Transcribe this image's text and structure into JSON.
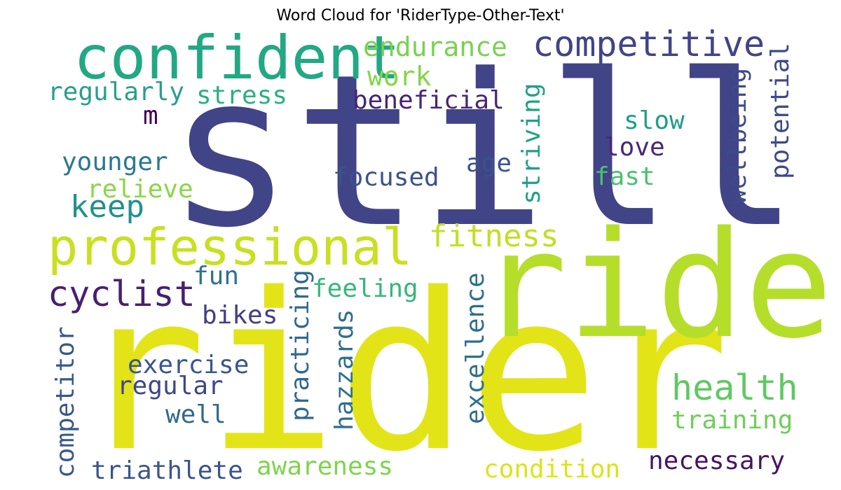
{
  "title": "Word Cloud for 'RiderType-Other-Text'",
  "words": [
    {
      "text": "still",
      "color": "#414487"
    },
    {
      "text": "rider",
      "color": "#e2e418"
    },
    {
      "text": "ride",
      "color": "#b5de2b"
    },
    {
      "text": "confident",
      "color": "#22a884"
    },
    {
      "text": "professional",
      "color": "#c8e020"
    },
    {
      "text": "competitive",
      "color": "#414487"
    },
    {
      "text": "endurance",
      "color": "#7ad151"
    },
    {
      "text": "work",
      "color": "#86d549"
    },
    {
      "text": "regularly",
      "color": "#2a9f8c"
    },
    {
      "text": "stress",
      "color": "#2ab07f"
    },
    {
      "text": "beneficial",
      "color": "#482576"
    },
    {
      "text": "m",
      "color": "#440154"
    },
    {
      "text": "younger",
      "color": "#2a788e"
    },
    {
      "text": "relieve",
      "color": "#8bd646"
    },
    {
      "text": "keep",
      "color": "#21918c"
    },
    {
      "text": "focused",
      "color": "#3b528b"
    },
    {
      "text": "age",
      "color": "#3b528b"
    },
    {
      "text": "striving",
      "color": "#1fa187"
    },
    {
      "text": "slow",
      "color": "#1f9e89"
    },
    {
      "text": "love",
      "color": "#482878"
    },
    {
      "text": "fast",
      "color": "#4ac16d"
    },
    {
      "text": "wellbeing",
      "color": "#3e4a89"
    },
    {
      "text": "potential",
      "color": "#3e4989"
    },
    {
      "text": "fitness",
      "color": "#c2df23"
    },
    {
      "text": "cyclist",
      "color": "#481f70"
    },
    {
      "text": "fun",
      "color": "#2c728e"
    },
    {
      "text": "feeling",
      "color": "#35b779"
    },
    {
      "text": "practicing",
      "color": "#31688e"
    },
    {
      "text": "bikes",
      "color": "#433e85"
    },
    {
      "text": "hazzards",
      "color": "#2d708e"
    },
    {
      "text": "excellence",
      "color": "#2e6e8e"
    },
    {
      "text": "exercise",
      "color": "#39568c"
    },
    {
      "text": "regular",
      "color": "#3f4788"
    },
    {
      "text": "well",
      "color": "#31688e"
    },
    {
      "text": "competitor",
      "color": "#38588c"
    },
    {
      "text": "health",
      "color": "#5ec962"
    },
    {
      "text": "training",
      "color": "#6ece58"
    },
    {
      "text": "triathlete",
      "color": "#3a548c"
    },
    {
      "text": "awareness",
      "color": "#7fd34e"
    },
    {
      "text": "condition",
      "color": "#dde318"
    },
    {
      "text": "necessary",
      "color": "#471365"
    }
  ]
}
